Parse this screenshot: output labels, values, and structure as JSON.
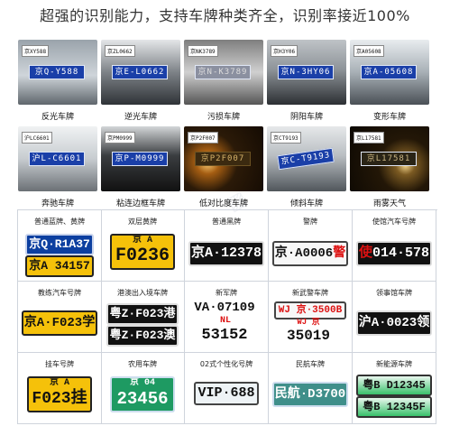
{
  "headline": "超强的识别能力，支持车牌种类齐全，识别率接近100%",
  "colors": {
    "blue_plate": "#0c3fa0",
    "yellow_plate": "#f5c10a",
    "black_plate": "#111111",
    "green_plate": "#1e9a62"
  },
  "photos": [
    {
      "caption": "反光车牌",
      "tag": "京XY588",
      "plate": "京Q-Y588"
    },
    {
      "caption": "逆光车牌",
      "tag": "京ZL0662",
      "plate": "京E-L0662"
    },
    {
      "caption": "污损车牌",
      "tag": "京NK3789",
      "plate": "京N-K3789"
    },
    {
      "caption": "阴阳车牌",
      "tag": "京H3Y06",
      "plate": "京N-3HY06"
    },
    {
      "caption": "变形车牌",
      "tag": "京A05608",
      "plate": "京A-05608"
    },
    {
      "caption": "奔驰车牌",
      "tag": "沪LC6601",
      "plate": "沪L-C6601"
    },
    {
      "caption": "粘连边框车牌",
      "tag": "京PM0999",
      "plate": "京P-M0999"
    },
    {
      "caption": "低对比度车牌",
      "tag": "京P2F007",
      "plate": "京P2F007"
    },
    {
      "caption": "倾斜车牌",
      "tag": "京CT9193",
      "plate": "京C-T9193"
    },
    {
      "caption": "雨雾天气",
      "tag": "京L17581",
      "plate": "京L17581"
    }
  ],
  "plates": [
    {
      "label": "普通蓝牌、黄牌",
      "lines": [
        {
          "style": "blue",
          "text": "京Q·R1A37"
        },
        {
          "style": "yellow",
          "text": "京A 34157"
        }
      ]
    },
    {
      "label": "双层黄牌",
      "lines": [
        {
          "style": "yellow",
          "text": "京 A"
        },
        {
          "style": "yellow",
          "text": "F0236"
        }
      ]
    },
    {
      "label": "普通黑牌",
      "lines": [
        {
          "style": "black",
          "text": "京A·12378"
        }
      ]
    },
    {
      "label": "警牌",
      "lines": [
        {
          "style": "white",
          "text": "京·A0006",
          "suffix": "警"
        }
      ]
    },
    {
      "label": "使馆汽车号牌",
      "lines": [
        {
          "style": "black",
          "text": "使",
          "suffix": "014·578"
        }
      ]
    },
    {
      "label": "教练汽车号牌",
      "lines": [
        {
          "style": "yellow",
          "text": "京A·F023学"
        }
      ]
    },
    {
      "label": "港澳出入境车牌",
      "lines": [
        {
          "style": "black",
          "text": "粤Z·F023港"
        },
        {
          "style": "black",
          "text": "粤Z·F023澳"
        }
      ]
    },
    {
      "label": "新军牌",
      "lines": [
        {
          "style": "white",
          "text": "VA·07109"
        },
        {
          "style": "white",
          "text": "NL"
        },
        {
          "style": "white",
          "text": "53152"
        }
      ]
    },
    {
      "label": "新武警车牌",
      "lines": [
        {
          "style": "white",
          "text": "WJ 京·3500B"
        },
        {
          "style": "white",
          "text": "WJ 京"
        },
        {
          "style": "white",
          "text": "35019"
        }
      ]
    },
    {
      "label": "领事馆车牌",
      "lines": [
        {
          "style": "black",
          "text": "沪A·0023领"
        }
      ]
    },
    {
      "label": "挂车号牌",
      "lines": [
        {
          "style": "yellow",
          "text": "京 A"
        },
        {
          "style": "yellow",
          "text": "F023挂"
        }
      ]
    },
    {
      "label": "农用车牌",
      "lines": [
        {
          "style": "green",
          "text": "京 04"
        },
        {
          "style": "green",
          "text": "23456"
        }
      ]
    },
    {
      "label": "02式个性化号牌",
      "lines": [
        {
          "style": "white",
          "text": "VIP·688"
        }
      ]
    },
    {
      "label": "民航车牌",
      "lines": [
        {
          "style": "green",
          "text": "民航·D3700"
        }
      ]
    },
    {
      "label": "新能源车牌",
      "lines": [
        {
          "style": "nev",
          "text": "粤B D12345"
        },
        {
          "style": "nev",
          "text": "粤B 12345F"
        }
      ]
    }
  ]
}
